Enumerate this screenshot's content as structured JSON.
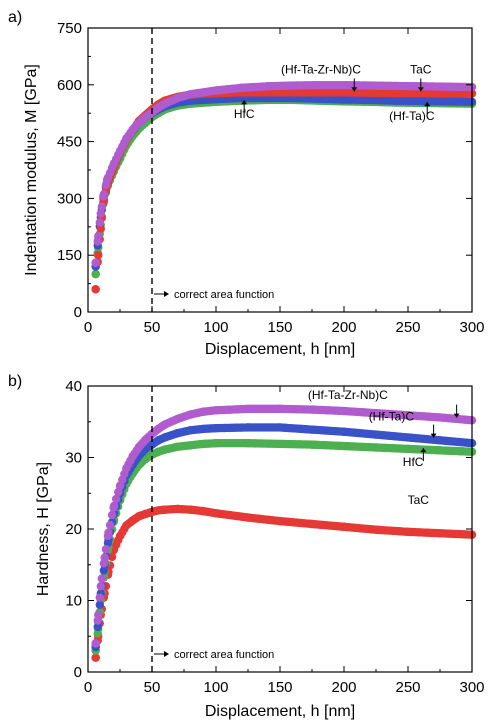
{
  "chart_data": [
    {
      "type": "scatter",
      "panel_label": "a)",
      "xlabel": "Displacement, h [nm]",
      "ylabel": "Indentation modulus, M [GPa]",
      "xlim": [
        0,
        300
      ],
      "ylim": [
        0,
        750
      ],
      "xticks": [
        "0",
        "50",
        "100",
        "150",
        "200",
        "250",
        "300"
      ],
      "yticks": [
        "0",
        "150",
        "300",
        "450",
        "600",
        "750"
      ],
      "grid": false,
      "vline_x": 50,
      "annotation": "correct area function",
      "series": [
        {
          "name": "HfC",
          "color": "#4caf50",
          "x": [
            6,
            8,
            10,
            12,
            15,
            20,
            25,
            30,
            35,
            40,
            45,
            50,
            55,
            60,
            70,
            80,
            100,
            120,
            140,
            160,
            180,
            200,
            220,
            240,
            260,
            280,
            300
          ],
          "y": [
            100,
            170,
            230,
            285,
            330,
            370,
            405,
            440,
            465,
            485,
            500,
            515,
            525,
            535,
            545,
            550,
            555,
            558,
            560,
            560,
            558,
            556,
            555,
            553,
            552,
            551,
            550
          ]
        },
        {
          "name": "(Hf-Ta)C",
          "color": "#3a52c8",
          "x": [
            6,
            8,
            10,
            12,
            15,
            20,
            25,
            30,
            35,
            40,
            45,
            50,
            55,
            60,
            70,
            80,
            100,
            120,
            140,
            160,
            180,
            200,
            220,
            240,
            260,
            280,
            300
          ],
          "y": [
            120,
            190,
            250,
            300,
            345,
            385,
            420,
            455,
            480,
            500,
            515,
            525,
            535,
            543,
            553,
            558,
            562,
            565,
            565,
            565,
            563,
            561,
            560,
            558,
            557,
            556,
            555
          ]
        },
        {
          "name": "TaC",
          "color": "#e53935",
          "x": [
            6,
            8,
            10,
            12,
            15,
            20,
            25,
            30,
            35,
            40,
            45,
            50,
            55,
            60,
            70,
            80,
            100,
            120,
            140,
            160,
            180,
            200,
            220,
            240,
            260,
            280,
            300
          ],
          "y": [
            60,
            150,
            220,
            290,
            335,
            380,
            420,
            455,
            480,
            505,
            520,
            535,
            548,
            558,
            568,
            574,
            578,
            580,
            580,
            580,
            580,
            580,
            579,
            578,
            578,
            577,
            577
          ]
        },
        {
          "name": "(Hf-Ta-Zr-Nb)C",
          "color": "#b05ccf",
          "x": [
            6,
            8,
            10,
            12,
            15,
            20,
            25,
            30,
            35,
            40,
            45,
            50,
            55,
            60,
            70,
            80,
            100,
            120,
            140,
            160,
            180,
            200,
            220,
            240,
            260,
            280,
            300
          ],
          "y": [
            130,
            200,
            260,
            305,
            350,
            390,
            425,
            458,
            482,
            500,
            515,
            527,
            540,
            550,
            565,
            575,
            585,
            592,
            596,
            598,
            599,
            599,
            598,
            597,
            596,
            595,
            594
          ]
        }
      ],
      "labels": [
        {
          "text": "(Hf-Ta-Zr-Nb)C",
          "x": 182,
          "y": 630
        },
        {
          "text": "TaC",
          "x": 260,
          "y": 630
        },
        {
          "text": "HfC",
          "x": 122,
          "y": 512
        },
        {
          "text": "(Hf-Ta)C",
          "x": 253,
          "y": 507
        }
      ]
    },
    {
      "type": "scatter",
      "panel_label": "b)",
      "xlabel": "Displacement, h [nm]",
      "ylabel": "Hardness, H [GPa]",
      "xlim": [
        0,
        300
      ],
      "ylim": [
        0,
        40
      ],
      "xticks": [
        "0",
        "50",
        "100",
        "150",
        "200",
        "250",
        "300"
      ],
      "yticks": [
        "0",
        "10",
        "20",
        "30",
        "40"
      ],
      "grid": false,
      "vline_x": 50,
      "annotation": "correct area function",
      "series": [
        {
          "name": "TaC",
          "color": "#e53935",
          "x": [
            6,
            8,
            10,
            13,
            16,
            20,
            25,
            30,
            35,
            40,
            45,
            50,
            55,
            60,
            70,
            80,
            90,
            100,
            125,
            150,
            175,
            200,
            225,
            250,
            275,
            300
          ],
          "y": [
            2,
            5,
            8,
            11,
            14,
            17,
            19,
            20.5,
            21.2,
            21.8,
            22.1,
            22.4,
            22.6,
            22.7,
            22.8,
            22.7,
            22.5,
            22.2,
            21.6,
            21.1,
            20.7,
            20.3,
            19.9,
            19.6,
            19.4,
            19.2
          ]
        },
        {
          "name": "HfC",
          "color": "#4caf50",
          "x": [
            6,
            8,
            10,
            13,
            16,
            20,
            25,
            30,
            35,
            40,
            45,
            50,
            55,
            60,
            70,
            80,
            90,
            100,
            125,
            150,
            175,
            200,
            225,
            250,
            275,
            300
          ],
          "y": [
            3,
            6,
            10,
            14,
            17.5,
            21,
            24,
            26.3,
            27.8,
            29,
            29.8,
            30.4,
            30.8,
            31.1,
            31.5,
            31.7,
            31.9,
            32,
            32,
            31.9,
            31.8,
            31.6,
            31.4,
            31.2,
            31,
            30.8
          ]
        },
        {
          "name": "(Hf-Ta)C",
          "color": "#3a52c8",
          "x": [
            6,
            8,
            10,
            13,
            16,
            20,
            25,
            30,
            35,
            40,
            45,
            50,
            55,
            60,
            70,
            80,
            90,
            100,
            125,
            150,
            175,
            200,
            225,
            250,
            275,
            300
          ],
          "y": [
            3.5,
            7,
            11,
            15,
            18.5,
            22,
            25,
            27.5,
            29,
            30.3,
            31.2,
            31.8,
            32.4,
            32.8,
            33.4,
            33.8,
            34,
            34.1,
            34.2,
            34.2,
            33.9,
            33.6,
            33.2,
            32.8,
            32.4,
            32
          ]
        },
        {
          "name": "(Hf-Ta-Zr-Nb)C",
          "color": "#b05ccf",
          "x": [
            6,
            8,
            10,
            13,
            16,
            20,
            25,
            30,
            35,
            40,
            45,
            50,
            55,
            60,
            70,
            80,
            90,
            100,
            125,
            150,
            175,
            200,
            225,
            250,
            275,
            300
          ],
          "y": [
            4,
            8,
            12,
            16,
            19.5,
            23,
            26,
            28.5,
            30.2,
            31.5,
            32.5,
            33.3,
            34,
            34.6,
            35.4,
            36,
            36.4,
            36.6,
            36.8,
            36.8,
            36.7,
            36.5,
            36.2,
            35.9,
            35.6,
            35.2
          ]
        }
      ],
      "labels": [
        {
          "text": "(Hf-Ta-Zr-Nb)C",
          "x": 203,
          "y": 38.2
        },
        {
          "text": "(Hf-Ta)C",
          "x": 237,
          "y": 35.2
        },
        {
          "text": "HfC",
          "x": 254,
          "y": 28.8
        },
        {
          "text": "TaC",
          "x": 258,
          "y": 23.5
        }
      ]
    }
  ]
}
